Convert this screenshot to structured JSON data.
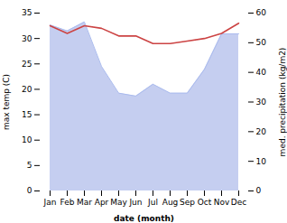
{
  "chart_data": {
    "type": "line",
    "categories": [
      "Jan",
      "Feb",
      "Mar",
      "Apr",
      "May",
      "Jun",
      "Jul",
      "Aug",
      "Sep",
      "Oct",
      "Nov",
      "Dec"
    ],
    "xlabel": "date (month)",
    "ylabel": "max temp (C)",
    "y2label": "med. precipitation (kg/m2)",
    "series": [
      {
        "type": "area",
        "axis": "y2",
        "color": "#c5cef0",
        "values": [
          56.0,
          54.0,
          57.0,
          42.0,
          33.0,
          32.0,
          36.0,
          33.0,
          33.0,
          41.0,
          53.0,
          53.0
        ]
      },
      {
        "type": "line",
        "axis": "y2",
        "color": "#aabbee",
        "values": [
          56.0,
          54.0,
          57.0,
          42.0,
          33.0,
          32.0,
          36.0,
          33.0,
          33.0,
          41.0,
          53.0,
          53.0
        ]
      },
      {
        "type": "line",
        "color": "#cc4444",
        "values": [
          32.5,
          31.0,
          32.5,
          32.0,
          30.5,
          30.5,
          29.0,
          29.0,
          29.5,
          30.0,
          31.0,
          33.0
        ]
      }
    ],
    "ylim": [
      0,
      35
    ],
    "yticks": [
      0,
      5,
      10,
      15,
      20,
      25,
      30,
      35
    ],
    "y2lim": [
      0,
      60
    ],
    "y2ticks": [
      0,
      10,
      20,
      30,
      40,
      50,
      60
    ]
  }
}
